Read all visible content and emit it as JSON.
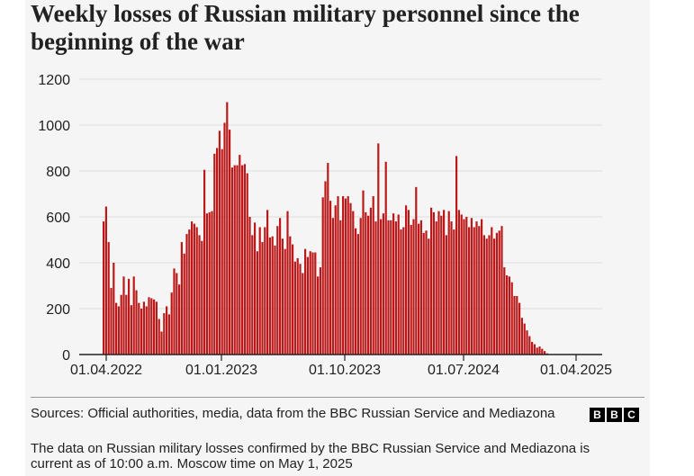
{
  "chart_data": {
    "type": "bar",
    "title": "Weekly losses of Russian military personnel since the beginning of the war",
    "xlabel": "",
    "ylabel": "",
    "ylim": [
      0,
      1200
    ],
    "yticks": [
      0,
      200,
      400,
      600,
      800,
      1000,
      1200
    ],
    "xtick_labels": [
      "01.04.2022",
      "01.01.2023",
      "01.10.2023",
      "01.07.2024",
      "01.04.2025"
    ],
    "grid": "horizontal",
    "legend": "none",
    "bar_color": "#bb1919",
    "values": [
      580,
      645,
      490,
      290,
      400,
      225,
      210,
      260,
      340,
      260,
      330,
      215,
      340,
      280,
      225,
      200,
      230,
      210,
      250,
      245,
      240,
      230,
      155,
      100,
      180,
      210,
      175,
      270,
      375,
      355,
      305,
      490,
      440,
      525,
      545,
      580,
      570,
      555,
      520,
      495,
      805,
      615,
      620,
      625,
      875,
      900,
      975,
      895,
      1010,
      1100,
      980,
      815,
      825,
      825,
      870,
      825,
      830,
      790,
      600,
      520,
      575,
      450,
      555,
      490,
      555,
      630,
      510,
      515,
      475,
      560,
      595,
      505,
      460,
      625,
      515,
      480,
      405,
      420,
      395,
      355,
      460,
      425,
      450,
      445,
      445,
      340,
      380,
      685,
      755,
      835,
      670,
      595,
      650,
      690,
      585,
      690,
      680,
      690,
      660,
      625,
      550,
      525,
      595,
      715,
      620,
      605,
      640,
      690,
      580,
      920,
      590,
      615,
      840,
      585,
      585,
      615,
      580,
      610,
      545,
      555,
      650,
      630,
      565,
      590,
      730,
      570,
      585,
      530,
      540,
      505,
      640,
      620,
      580,
      625,
      605,
      630,
      520,
      625,
      580,
      545,
      865,
      630,
      610,
      590,
      600,
      555,
      595,
      555,
      580,
      560,
      590,
      520,
      505,
      520,
      555,
      505,
      530,
      540,
      560,
      380,
      345,
      340,
      315,
      255,
      255,
      225,
      160,
      135,
      105,
      80,
      55,
      45,
      30,
      35,
      25,
      15,
      5
    ],
    "sources": "Sources: Official authorities, media, data from the BBC Russian Service and Mediazona",
    "note": "The data on Russian military losses confirmed by the BBC Russian Service and Mediazona is current as of 10:00 a.m. Moscow time on May 1, 2025",
    "logo": [
      "B",
      "B",
      "C"
    ]
  }
}
